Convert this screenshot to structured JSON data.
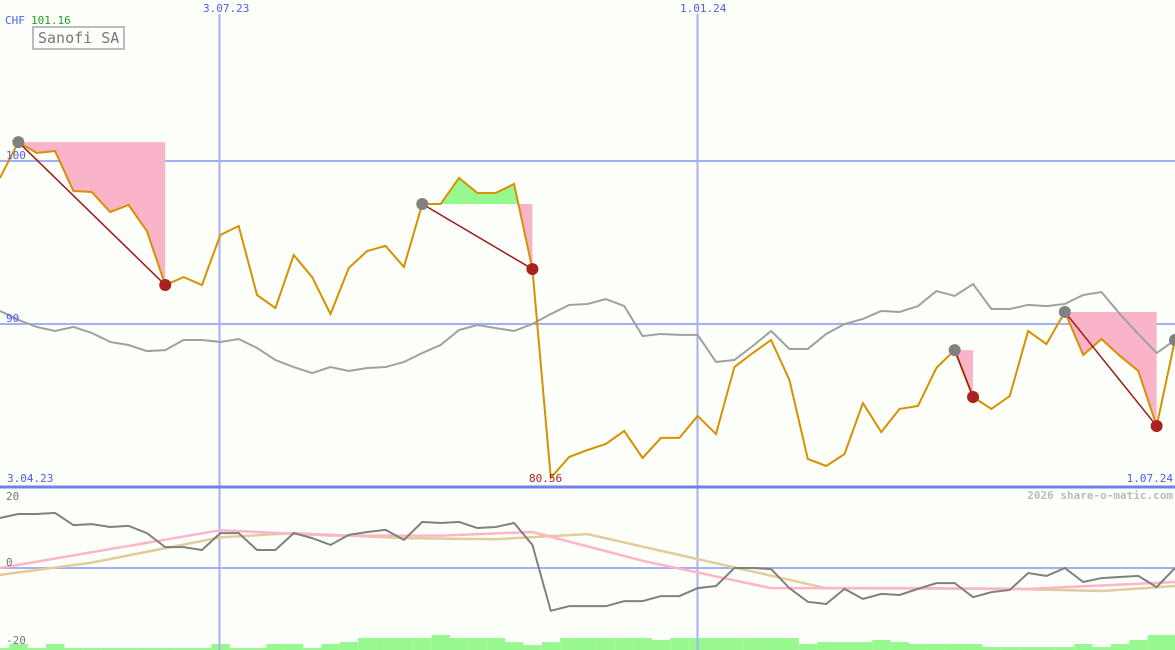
{
  "header": {
    "currency": "CHF",
    "last_price": "101.16",
    "title": "Sanofi SA",
    "watermark": "2026 share-o-matic.com"
  },
  "colors": {
    "price": "#d89000",
    "comparison": "#a0a0a0",
    "oscillator": "#808080",
    "signal_pink": "#ffb4c8",
    "signal_tan": "#e2cc9c",
    "loss_fill": "#f9b4c9",
    "gain_fill": "#98f890",
    "volume": "#98f890",
    "sell_marker": "#a82020",
    "buy_marker": "#808080",
    "grid": "#a4b0f4",
    "separator": "#7080e8"
  },
  "chart_data": [
    {
      "type": "line",
      "title": "Sanofi SA",
      "ylabel": "CHF",
      "y_ticks": [
        "100",
        "90"
      ],
      "ylim": [
        80,
        102
      ],
      "x_tick_labels": {
        "top": [
          "3.07.23",
          "1.01.24"
        ],
        "bottom_left": "3.04.23",
        "bottom_right": "1.07.24"
      },
      "x_gridlines": [
        "2023-07-03",
        "2024-01-01"
      ],
      "min_label": "80.56",
      "grid": true,
      "x": [
        "2023-04-10",
        "2023-04-17",
        "2023-04-24",
        "2023-05-01",
        "2023-05-08",
        "2023-05-15",
        "2023-05-22",
        "2023-05-29",
        "2023-06-05",
        "2023-06-12",
        "2023-06-19",
        "2023-06-26",
        "2023-07-03",
        "2023-07-10",
        "2023-07-17",
        "2023-07-24",
        "2023-07-31",
        "2023-08-07",
        "2023-08-14",
        "2023-08-21",
        "2023-08-28",
        "2023-09-04",
        "2023-09-11",
        "2023-09-18",
        "2023-09-25",
        "2023-10-02",
        "2023-10-09",
        "2023-10-16",
        "2023-10-23",
        "2023-10-30",
        "2023-11-06",
        "2023-11-13",
        "2023-11-20",
        "2023-11-27",
        "2023-12-04",
        "2023-12-11",
        "2023-12-18",
        "2023-12-25",
        "2024-01-01",
        "2024-01-08",
        "2024-01-15",
        "2024-01-22",
        "2024-01-29",
        "2024-02-05",
        "2024-02-12",
        "2024-02-19",
        "2024-02-26",
        "2024-03-04",
        "2024-03-11",
        "2024-03-18",
        "2024-03-25",
        "2024-04-01",
        "2024-04-08",
        "2024-04-15",
        "2024-04-22",
        "2024-04-29",
        "2024-05-06",
        "2024-05-13",
        "2024-05-20",
        "2024-05-27",
        "2024-06-03",
        "2024-06-10",
        "2024-06-17",
        "2024-06-24",
        "2024-07-01"
      ],
      "series": [
        {
          "key": "price",
          "values": [
            98.96,
            101.16,
            100.49,
            100.61,
            98.16,
            98.1,
            96.87,
            97.3,
            95.71,
            92.39,
            92.88,
            92.39,
            95.46,
            96.01,
            91.78,
            90.98,
            94.23,
            92.88,
            90.61,
            93.44,
            94.48,
            94.79,
            93.5,
            97.36,
            97.36,
            98.96,
            98.04,
            98.04,
            98.59,
            93.37,
            80.56,
            81.84,
            82.27,
            82.64,
            83.44,
            81.78,
            83.01,
            83.01,
            84.36,
            83.25,
            87.36,
            88.22,
            89.02,
            86.56,
            81.72,
            81.29,
            82.02,
            85.15,
            83.37,
            84.79,
            84.97,
            87.3,
            88.4,
            85.52,
            84.79,
            85.58,
            89.57,
            88.77,
            90.74,
            88.1,
            89.08,
            88.04,
            87.12,
            83.74,
            89.02
          ]
        },
        {
          "key": "comparison",
          "values": [
            90.8,
            90.25,
            89.82,
            89.57,
            89.82,
            89.45,
            88.9,
            88.71,
            88.34,
            88.4,
            89.02,
            89.02,
            88.9,
            89.08,
            88.53,
            87.79,
            87.36,
            86.99,
            87.36,
            87.12,
            87.3,
            87.36,
            87.67,
            88.22,
            88.71,
            89.63,
            89.94,
            89.75,
            89.57,
            90.0,
            90.61,
            91.17,
            91.23,
            91.53,
            91.1,
            89.26,
            89.39,
            89.33,
            89.33,
            87.67,
            87.79,
            88.65,
            89.57,
            88.47,
            88.47,
            89.39,
            90.0,
            90.31,
            90.8,
            90.74,
            91.1,
            92.02,
            91.72,
            92.45,
            90.92,
            90.92,
            91.17,
            91.1,
            91.23,
            91.78,
            91.96,
            90.61,
            89.39,
            88.22,
            89.02
          ]
        }
      ],
      "trades": [
        {
          "buy": "2023-04-17",
          "sell": "2023-06-12"
        },
        {
          "buy": "2023-09-18",
          "sell": "2023-10-30"
        },
        {
          "buy": "2024-04-08",
          "sell": "2024-04-15"
        },
        {
          "buy": "2024-05-20",
          "sell": "2024-06-24"
        }
      ],
      "open_signal": "2024-07-01"
    },
    {
      "type": "line",
      "y_ticks": [
        "20",
        "0",
        "-20"
      ],
      "ylim": [
        -20,
        20
      ],
      "oscillator": [
        13.9,
        15.0,
        15.0,
        15.3,
        11.9,
        12.2,
        11.4,
        11.7,
        9.7,
        5.8,
        5.8,
        5.0,
        9.7,
        9.7,
        5.0,
        5.0,
        9.7,
        8.3,
        6.4,
        9.2,
        10.0,
        10.6,
        7.8,
        12.8,
        12.5,
        12.8,
        11.1,
        11.4,
        12.5,
        6.4,
        -11.9,
        -10.6,
        -10.6,
        -10.6,
        -9.2,
        -9.2,
        -7.8,
        -7.8,
        -5.6,
        -5.0,
        0,
        0,
        -0.3,
        -5.6,
        -9.4,
        -10.0,
        -5.8,
        -8.6,
        -7.2,
        -7.5,
        -5.8,
        -4.2,
        -4.2,
        -8.1,
        -6.7,
        -6.1,
        -1.4,
        -2.2,
        0,
        -3.9,
        -2.8,
        -2.5,
        -2.2,
        -5.3,
        0
      ],
      "signal_pink": [
        [
          "2023-04-10",
          0
        ],
        [
          "2023-07-03",
          10.5
        ],
        [
          "2023-08-14",
          9.0
        ],
        [
          "2023-09-25",
          9.0
        ],
        [
          "2023-10-30",
          10.0
        ],
        [
          "2023-12-11",
          2.0
        ],
        [
          "2024-01-29",
          -5.6
        ],
        [
          "2024-03-25",
          -5.6
        ],
        [
          "2024-05-06",
          -5.8
        ],
        [
          "2024-07-01",
          -3.9
        ]
      ],
      "signal_tan": [
        [
          "2023-04-10",
          -1.9
        ],
        [
          "2023-05-15",
          1.5
        ],
        [
          "2023-07-03",
          8.5
        ],
        [
          "2023-07-31",
          9.7
        ],
        [
          "2023-09-11",
          8.3
        ],
        [
          "2023-10-16",
          8.0
        ],
        [
          "2023-11-20",
          9.4
        ],
        [
          "2024-02-19",
          -5.6
        ],
        [
          "2024-04-29",
          -5.8
        ],
        [
          "2024-06-03",
          -6.4
        ],
        [
          "2024-07-01",
          -5.0
        ]
      ],
      "volume_level": [
        0.13,
        0.4,
        0.13,
        0.4,
        0.13,
        0.13,
        0.13,
        0.13,
        0.13,
        0.13,
        0.13,
        0.13,
        0.4,
        0.13,
        0.13,
        0.4,
        0.4,
        0.13,
        0.4,
        0.53,
        0.8,
        0.8,
        0.8,
        0.8,
        1.0,
        0.8,
        0.8,
        0.8,
        0.53,
        0.33,
        0.53,
        0.8,
        0.8,
        0.8,
        0.8,
        0.8,
        0.67,
        0.8,
        0.8,
        0.8,
        0.8,
        0.8,
        0.8,
        0.8,
        0.4,
        0.53,
        0.53,
        0.53,
        0.67,
        0.53,
        0.4,
        0.4,
        0.4,
        0.4,
        0.2,
        0.2,
        0.2,
        0.2,
        0.2,
        0.4,
        0.2,
        0.4,
        0.67,
        1.0,
        1.0
      ]
    }
  ]
}
